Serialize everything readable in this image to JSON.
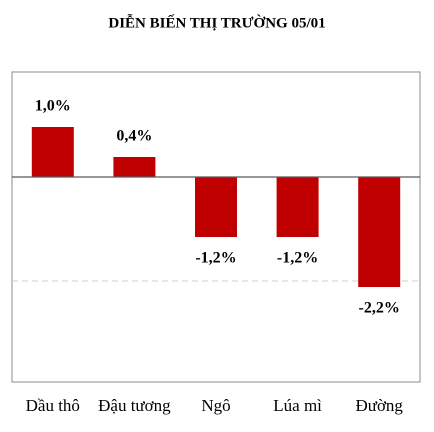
{
  "chart_data": {
    "type": "bar",
    "title": "DIỄN BIẾN THỊ TRƯỜNG 05/01",
    "categories": [
      "Dầu thô",
      "Đậu tương",
      "Ngô",
      "Lúa mì",
      "Đường"
    ],
    "values": [
      1.0,
      0.4,
      -1.2,
      -1.2,
      -2.2
    ],
    "value_labels": [
      "1,0%",
      "0,4%",
      "-1,2%",
      "-1,2%",
      "-2,2%"
    ],
    "color": "#c00000",
    "ylim": [
      -4.1,
      2.1
    ]
  }
}
